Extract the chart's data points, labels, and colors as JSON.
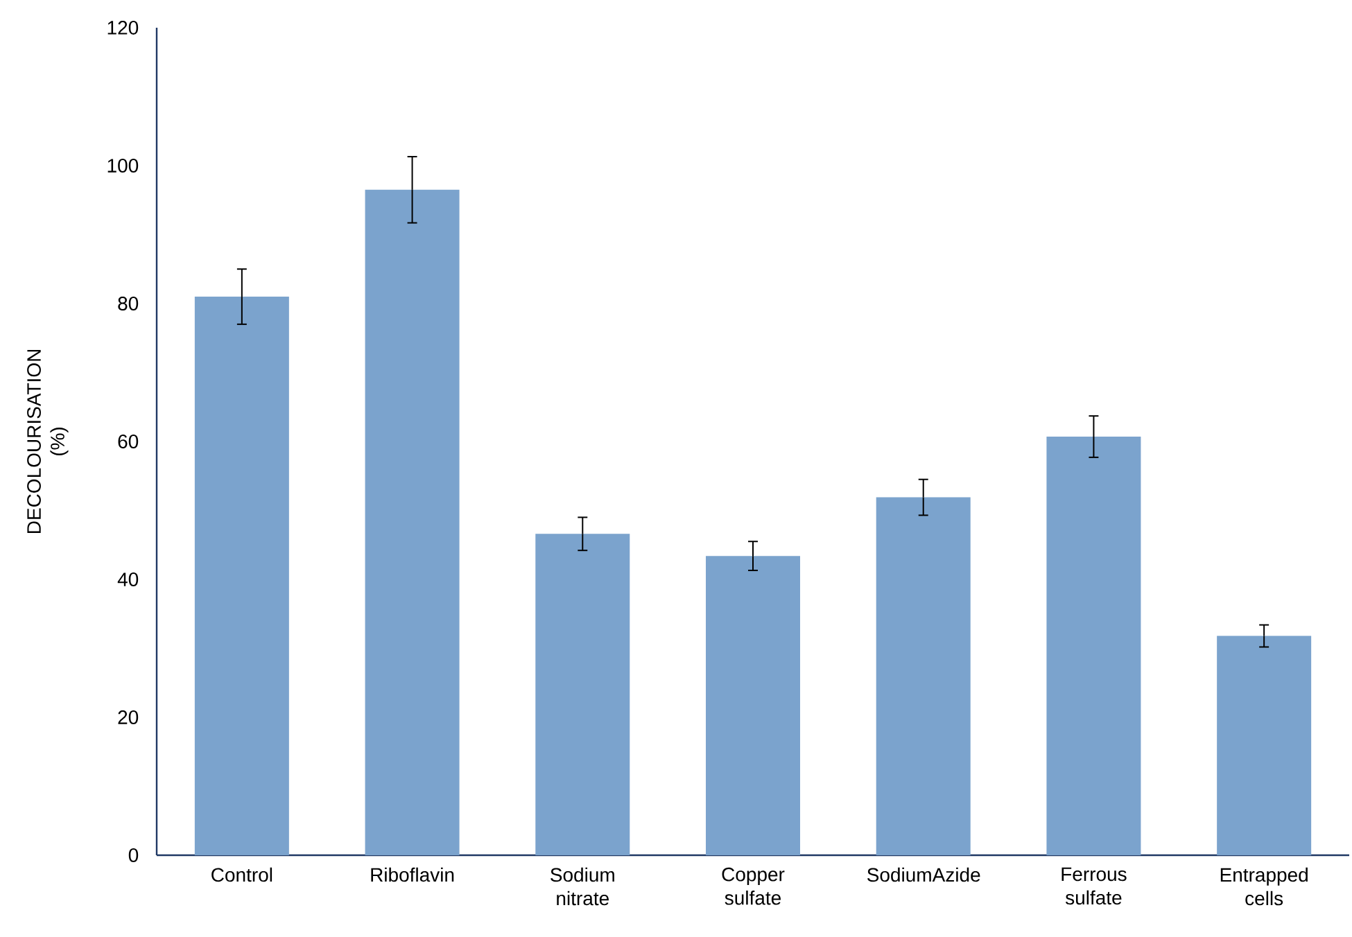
{
  "chart_data": {
    "type": "bar",
    "ylabel": "DECOLOURISATION (%)",
    "categories": [
      "Control",
      "Riboflavin",
      "Sodium nitrate",
      "Copper sulfate",
      "SodiumAzide",
      "Ferrous sulfate",
      "Entrapped cells"
    ],
    "values": [
      81.0,
      96.5,
      46.6,
      43.4,
      51.9,
      60.7,
      31.8
    ],
    "errors": [
      4.0,
      4.8,
      2.4,
      2.1,
      2.6,
      3.0,
      1.6
    ],
    "color": "#7ba3cd",
    "ylim": [
      0,
      120
    ],
    "yticks": [
      0,
      20,
      40,
      60,
      80,
      100,
      120
    ]
  }
}
